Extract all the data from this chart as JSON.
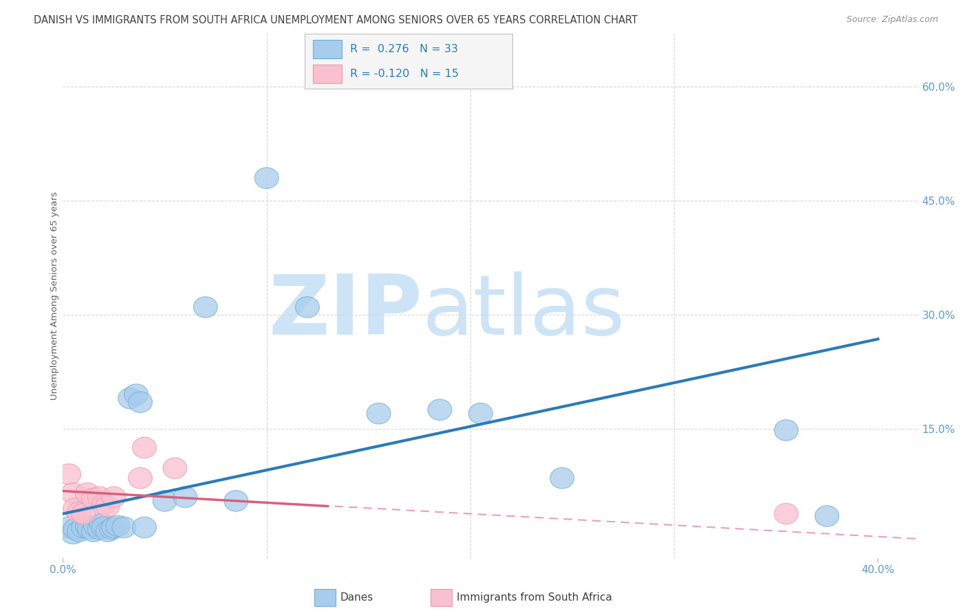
{
  "title": "DANISH VS IMMIGRANTS FROM SOUTH AFRICA UNEMPLOYMENT AMONG SENIORS OVER 65 YEARS CORRELATION CHART",
  "source": "Source: ZipAtlas.com",
  "ylabel": "Unemployment Among Seniors over 65 years",
  "xlim": [
    0.0,
    0.42
  ],
  "ylim": [
    -0.02,
    0.67
  ],
  "yticks_right": [
    0.15,
    0.3,
    0.45,
    0.6
  ],
  "ytick_labels_right": [
    "15.0%",
    "30.0%",
    "45.0%",
    "60.0%"
  ],
  "blue_color": "#a8ccec",
  "blue_edge_color": "#6baed6",
  "pink_color": "#f9c0cf",
  "pink_edge_color": "#e899b0",
  "blue_line_color": "#2b7bba",
  "pink_line_color": "#d9607a",
  "pink_dash_color": "#e8a0b4",
  "legend_R_blue": "R =  0.276",
  "legend_N_blue": "N = 33",
  "legend_R_pink": "R = -0.120",
  "legend_N_pink": "N = 15",
  "watermark_zip": "ZIP",
  "watermark_atlas": "atlas",
  "watermark_color": "#cce4f5",
  "title_color": "#404040",
  "source_color": "#909090",
  "axis_label_color": "#606060",
  "tick_color": "#5b9bd5",
  "blue_points_x": [
    0.003,
    0.005,
    0.006,
    0.008,
    0.01,
    0.012,
    0.013,
    0.015,
    0.016,
    0.018,
    0.019,
    0.02,
    0.022,
    0.024,
    0.025,
    0.027,
    0.03,
    0.033,
    0.036,
    0.038,
    0.04,
    0.05,
    0.06,
    0.07,
    0.085,
    0.1,
    0.12,
    0.155,
    0.185,
    0.205,
    0.245,
    0.355,
    0.375
  ],
  "blue_points_y": [
    0.02,
    0.012,
    0.018,
    0.015,
    0.02,
    0.022,
    0.018,
    0.015,
    0.022,
    0.018,
    0.025,
    0.02,
    0.015,
    0.018,
    0.02,
    0.022,
    0.02,
    0.19,
    0.195,
    0.185,
    0.02,
    0.055,
    0.06,
    0.31,
    0.055,
    0.48,
    0.31,
    0.17,
    0.175,
    0.17,
    0.085,
    0.148,
    0.035
  ],
  "pink_points_x": [
    0.003,
    0.005,
    0.006,
    0.008,
    0.01,
    0.012,
    0.015,
    0.018,
    0.02,
    0.022,
    0.025,
    0.038,
    0.055,
    0.355,
    0.04
  ],
  "pink_points_y": [
    0.09,
    0.065,
    0.045,
    0.04,
    0.038,
    0.065,
    0.058,
    0.06,
    0.05,
    0.048,
    0.06,
    0.085,
    0.098,
    0.038,
    0.125
  ],
  "blue_trend_x0": 0.0,
  "blue_trend_y0": 0.038,
  "blue_trend_x1": 0.4,
  "blue_trend_y1": 0.268,
  "pink_trend_solid_x0": 0.0,
  "pink_trend_solid_y0": 0.068,
  "pink_trend_solid_x1": 0.13,
  "pink_trend_solid_y1": 0.048,
  "pink_trend_dash_x0": 0.0,
  "pink_trend_dash_y0": 0.068,
  "pink_trend_dash_x1": 0.42,
  "pink_trend_dash_y1": 0.005,
  "grid_color": "#d8d8d8",
  "background_color": "#ffffff",
  "fig_background": "#ffffff"
}
